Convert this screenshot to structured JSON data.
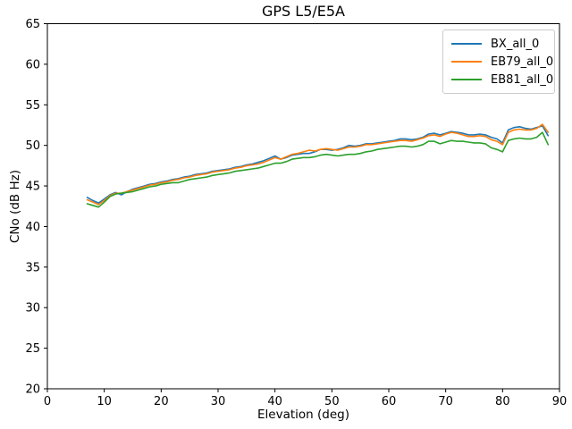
{
  "chart_data": {
    "type": "line",
    "title": "GPS L5/E5A",
    "xlabel": "Elevation (deg)",
    "ylabel": "CNo (dB Hz)",
    "xlim": [
      0,
      90
    ],
    "ylim": [
      20,
      65
    ],
    "xticks": [
      0,
      10,
      20,
      30,
      40,
      50,
      60,
      70,
      80,
      90
    ],
    "yticks": [
      20,
      25,
      30,
      35,
      40,
      45,
      50,
      55,
      60,
      65
    ],
    "grid": false,
    "legend_position": "upper right",
    "x": [
      7,
      8,
      9,
      10,
      11,
      12,
      13,
      14,
      15,
      16,
      17,
      18,
      19,
      20,
      21,
      22,
      23,
      24,
      25,
      26,
      27,
      28,
      29,
      30,
      31,
      32,
      33,
      34,
      35,
      36,
      37,
      38,
      39,
      40,
      41,
      42,
      43,
      44,
      45,
      46,
      47,
      48,
      49,
      50,
      51,
      52,
      53,
      54,
      55,
      56,
      57,
      58,
      59,
      60,
      61,
      62,
      63,
      64,
      65,
      66,
      67,
      68,
      69,
      70,
      71,
      72,
      73,
      74,
      75,
      76,
      77,
      78,
      79,
      80,
      81,
      82,
      83,
      84,
      85,
      86,
      87,
      88
    ],
    "series": [
      {
        "name": "BX_all_0",
        "color": "#1f77b4",
        "values": [
          43.6,
          43.2,
          42.9,
          43.4,
          43.9,
          44.2,
          43.9,
          44.3,
          44.6,
          44.8,
          45.0,
          45.2,
          45.3,
          45.5,
          45.6,
          45.8,
          45.9,
          46.1,
          46.2,
          46.4,
          46.5,
          46.6,
          46.8,
          46.9,
          47.0,
          47.1,
          47.3,
          47.4,
          47.6,
          47.7,
          47.9,
          48.1,
          48.4,
          48.7,
          48.3,
          48.5,
          48.8,
          48.9,
          49.0,
          49.0,
          49.2,
          49.5,
          49.5,
          49.4,
          49.5,
          49.7,
          50.0,
          49.9,
          50.0,
          50.2,
          50.2,
          50.3,
          50.4,
          50.5,
          50.6,
          50.8,
          50.8,
          50.7,
          50.8,
          51.0,
          51.4,
          51.5,
          51.3,
          51.5,
          51.7,
          51.6,
          51.5,
          51.3,
          51.3,
          51.4,
          51.3,
          51.0,
          50.8,
          50.3,
          51.9,
          52.2,
          52.3,
          52.1,
          52.0,
          52.2,
          52.4,
          51.2
        ]
      },
      {
        "name": "EB79_all_0",
        "color": "#ff7f0e",
        "values": [
          43.3,
          43.0,
          42.7,
          43.2,
          43.8,
          44.1,
          44.1,
          44.3,
          44.5,
          44.7,
          44.9,
          45.1,
          45.2,
          45.4,
          45.5,
          45.7,
          45.8,
          46.0,
          46.1,
          46.3,
          46.4,
          46.5,
          46.7,
          46.8,
          46.9,
          47.0,
          47.2,
          47.3,
          47.5,
          47.6,
          47.7,
          47.9,
          48.2,
          48.5,
          48.3,
          48.6,
          48.9,
          49.0,
          49.2,
          49.4,
          49.3,
          49.5,
          49.6,
          49.5,
          49.4,
          49.6,
          49.8,
          49.8,
          49.9,
          50.1,
          50.1,
          50.2,
          50.3,
          50.4,
          50.5,
          50.6,
          50.6,
          50.5,
          50.7,
          50.9,
          51.2,
          51.3,
          51.1,
          51.4,
          51.6,
          51.5,
          51.3,
          51.1,
          51.1,
          51.2,
          51.1,
          50.7,
          50.5,
          50.1,
          51.6,
          51.9,
          52.0,
          51.9,
          51.9,
          52.1,
          52.6,
          51.6
        ]
      },
      {
        "name": "EB81_all_0",
        "color": "#2ca02c",
        "values": [
          42.8,
          42.6,
          42.4,
          43.0,
          43.7,
          44.0,
          44.1,
          44.2,
          44.3,
          44.5,
          44.7,
          44.9,
          45.0,
          45.2,
          45.3,
          45.4,
          45.4,
          45.6,
          45.8,
          45.9,
          46.0,
          46.1,
          46.3,
          46.4,
          46.5,
          46.6,
          46.8,
          46.9,
          47.0,
          47.1,
          47.2,
          47.4,
          47.6,
          47.8,
          47.8,
          48.0,
          48.3,
          48.4,
          48.5,
          48.5,
          48.6,
          48.8,
          48.9,
          48.8,
          48.7,
          48.8,
          48.9,
          48.9,
          49.0,
          49.2,
          49.3,
          49.5,
          49.6,
          49.7,
          49.8,
          49.9,
          49.9,
          49.8,
          49.9,
          50.1,
          50.5,
          50.5,
          50.2,
          50.4,
          50.6,
          50.5,
          50.5,
          50.4,
          50.3,
          50.3,
          50.2,
          49.7,
          49.5,
          49.2,
          50.6,
          50.8,
          50.9,
          50.8,
          50.8,
          51.0,
          51.6,
          50.1
        ]
      }
    ]
  }
}
